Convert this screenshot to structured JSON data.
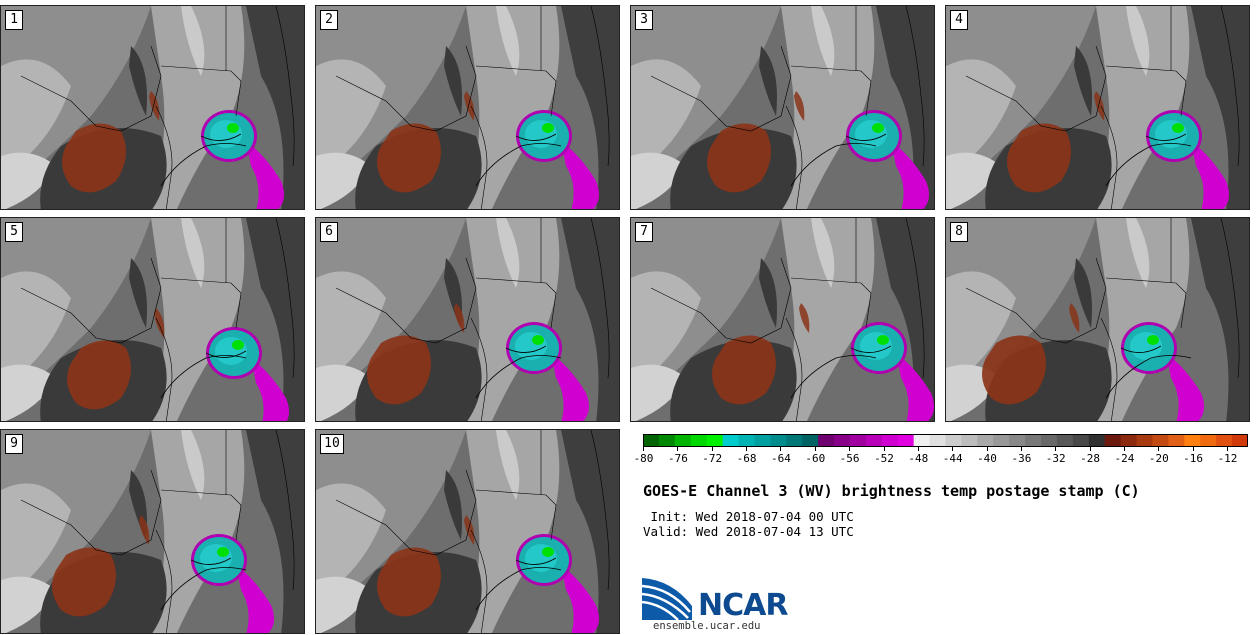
{
  "panels": [
    "1",
    "2",
    "3",
    "4",
    "5",
    "6",
    "7",
    "8",
    "9",
    "10"
  ],
  "colorbar": {
    "colors": [
      "#006400",
      "#008800",
      "#00b400",
      "#00d800",
      "#00f000",
      "#00cccc",
      "#00b4b4",
      "#00a0a0",
      "#008c8c",
      "#007878",
      "#006464",
      "#700070",
      "#880088",
      "#a000a0",
      "#b800b8",
      "#d000d0",
      "#e000e0",
      "#f0f0f0",
      "#e0e0e0",
      "#cccccc",
      "#bcbcbc",
      "#a8a8a8",
      "#989898",
      "#888888",
      "#787878",
      "#686868",
      "#585858",
      "#484848",
      "#303030",
      "#6b1a0d",
      "#8c2a10",
      "#a83a12",
      "#c44a14",
      "#e06018",
      "#ff7f10",
      "#f06a10",
      "#e05010",
      "#d03a0a"
    ],
    "tick_labels": [
      "-80",
      "-76",
      "-72",
      "-68",
      "-64",
      "-60",
      "-56",
      "-52",
      "-48",
      "-44",
      "-40",
      "-36",
      "-32",
      "-28",
      "-24",
      "-20",
      "-16",
      "-12"
    ]
  },
  "title": "GOES-E Channel 3 (WV) brightness temp postage stamp (C)",
  "init": " Init: Wed 2018-07-04 00 UTC",
  "valid": "Valid: Wed 2018-07-04 13 UTC",
  "logo": {
    "name": "NCAR",
    "url": "ensemble.ucar.edu"
  }
}
